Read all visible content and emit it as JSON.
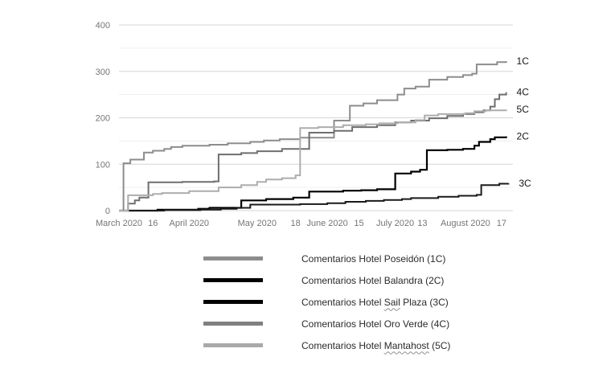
{
  "chart_data": {
    "type": "line",
    "step": true,
    "title": "",
    "xlabel": "",
    "ylabel": "",
    "grid": true,
    "legend_position": "bottom",
    "x_axis": {
      "unit": "days since 2020-03-01",
      "range": [
        0,
        174
      ],
      "ticks": [
        {
          "label": "March 2020",
          "day": 0
        },
        {
          "label": "16",
          "day": 15
        },
        {
          "label": "April 2020",
          "day": 31
        },
        {
          "label": "May 2020",
          "day": 61
        },
        {
          "label": "18",
          "day": 78
        },
        {
          "label": "June 2020",
          "day": 92
        },
        {
          "label": "15",
          "day": 106
        },
        {
          "label": "July 2020",
          "day": 122
        },
        {
          "label": "13",
          "day": 134
        },
        {
          "label": "August 2020",
          "day": 153
        },
        {
          "label": "17",
          "day": 169
        }
      ]
    },
    "y_axis": {
      "range": [
        0,
        400
      ],
      "ticks": [
        0,
        100,
        200,
        300,
        400
      ],
      "minor_gridlines": [
        50,
        150,
        250,
        350
      ]
    },
    "series": [
      {
        "id": "1C",
        "name": "Comentarios Hotel Poseidón (1C)",
        "end_label": "1C",
        "color": "#8d8d8d",
        "stroke_width": 2,
        "points": [
          [
            0,
            0
          ],
          [
            2,
            102
          ],
          [
            5,
            110
          ],
          [
            11,
            125
          ],
          [
            15,
            129
          ],
          [
            20,
            133
          ],
          [
            23,
            137
          ],
          [
            28,
            140
          ],
          [
            40,
            142
          ],
          [
            48,
            145
          ],
          [
            58,
            148
          ],
          [
            64,
            151
          ],
          [
            71,
            154
          ],
          [
            80,
            157
          ],
          [
            95,
            194
          ],
          [
            102,
            226
          ],
          [
            108,
            231
          ],
          [
            114,
            238
          ],
          [
            123,
            250
          ],
          [
            126,
            263
          ],
          [
            131,
            267
          ],
          [
            137,
            282
          ],
          [
            145,
            288
          ],
          [
            152,
            292
          ],
          [
            156,
            295
          ],
          [
            158,
            315
          ],
          [
            167,
            320
          ],
          [
            171,
            322
          ]
        ]
      },
      {
        "id": "2C",
        "name": "Comentarios Hotel Balandra (2C)",
        "end_label": "2C",
        "color": "#000000",
        "stroke_width": 2.2,
        "points": [
          [
            0,
            0
          ],
          [
            17,
            2
          ],
          [
            35,
            4
          ],
          [
            40,
            6
          ],
          [
            54,
            22
          ],
          [
            65,
            25
          ],
          [
            77,
            28
          ],
          [
            84,
            41
          ],
          [
            99,
            43
          ],
          [
            107,
            44
          ],
          [
            114,
            46
          ],
          [
            122,
            80
          ],
          [
            129,
            84
          ],
          [
            133,
            88
          ],
          [
            136,
            130
          ],
          [
            145,
            131
          ],
          [
            152,
            133
          ],
          [
            157,
            140
          ],
          [
            159,
            148
          ],
          [
            164,
            154
          ],
          [
            166,
            158
          ],
          [
            171,
            160
          ]
        ]
      },
      {
        "id": "3C",
        "name": "Comentarios Hotel Sail Plaza (3C)",
        "end_label": "3C",
        "color": "#1a1a1a",
        "stroke_width": 2,
        "points": [
          [
            0,
            0
          ],
          [
            20,
            1
          ],
          [
            36,
            2
          ],
          [
            45,
            4
          ],
          [
            52,
            6
          ],
          [
            58,
            13
          ],
          [
            80,
            14
          ],
          [
            92,
            16
          ],
          [
            100,
            19
          ],
          [
            109,
            21
          ],
          [
            117,
            23
          ],
          [
            125,
            25
          ],
          [
            129,
            27
          ],
          [
            141,
            30
          ],
          [
            150,
            32
          ],
          [
            158,
            34
          ],
          [
            160,
            55
          ],
          [
            168,
            58
          ],
          [
            172,
            59
          ]
        ]
      },
      {
        "id": "4C",
        "name": "Comentarios Hotel Oro Verde (4C)",
        "end_label": "4C",
        "color": "#6e6e6e",
        "stroke_width": 2,
        "points": [
          [
            0,
            0
          ],
          [
            4,
            15
          ],
          [
            7,
            22
          ],
          [
            9,
            28
          ],
          [
            13,
            61
          ],
          [
            28,
            62
          ],
          [
            42,
            63
          ],
          [
            44,
            121
          ],
          [
            54,
            124
          ],
          [
            61,
            128
          ],
          [
            72,
            133
          ],
          [
            84,
            168
          ],
          [
            95,
            172
          ],
          [
            103,
            180
          ],
          [
            114,
            184
          ],
          [
            122,
            190
          ],
          [
            129,
            194
          ],
          [
            137,
            199
          ],
          [
            145,
            204
          ],
          [
            152,
            208
          ],
          [
            157,
            212
          ],
          [
            161,
            216
          ],
          [
            164,
            224
          ],
          [
            166,
            240
          ],
          [
            168,
            250
          ],
          [
            171,
            255
          ]
        ]
      },
      {
        "id": "5C",
        "name": "Comentarios Hotel Mantahost (5C)",
        "end_label": "5C",
        "color": "#adadad",
        "stroke_width": 2,
        "points": [
          [
            0,
            0
          ],
          [
            4,
            33
          ],
          [
            15,
            36
          ],
          [
            19,
            38
          ],
          [
            31,
            42
          ],
          [
            44,
            50
          ],
          [
            54,
            55
          ],
          [
            61,
            62
          ],
          [
            65,
            67
          ],
          [
            72,
            70
          ],
          [
            78,
            76
          ],
          [
            80,
            178
          ],
          [
            88,
            180
          ],
          [
            99,
            184
          ],
          [
            109,
            186
          ],
          [
            115,
            188
          ],
          [
            123,
            190
          ],
          [
            131,
            195
          ],
          [
            135,
            205
          ],
          [
            141,
            208
          ],
          [
            153,
            210
          ],
          [
            157,
            214
          ],
          [
            162,
            216
          ],
          [
            171,
            218
          ]
        ]
      }
    ]
  },
  "legend": {
    "items": [
      {
        "color": "#8d8d8d",
        "label_pre": "Comentarios Hotel Poseidón (1C)",
        "label_misspelled": "",
        "label_post": ""
      },
      {
        "color": "#000000",
        "label_pre": "Comentarios Hotel Balandra (2C)",
        "label_misspelled": "",
        "label_post": ""
      },
      {
        "color": "#000000",
        "label_pre": "Comentarios Hotel ",
        "label_misspelled": "Sail",
        "label_post": " Plaza (3C)"
      },
      {
        "color": "#808080",
        "label_pre": "Comentarios Hotel Oro Verde (4C)",
        "label_misspelled": "",
        "label_post": ""
      },
      {
        "color": "#a9a9a9",
        "label_pre": "Comentarios Hotel ",
        "label_misspelled": "Mantahost",
        "label_post": " (5C)"
      }
    ]
  }
}
